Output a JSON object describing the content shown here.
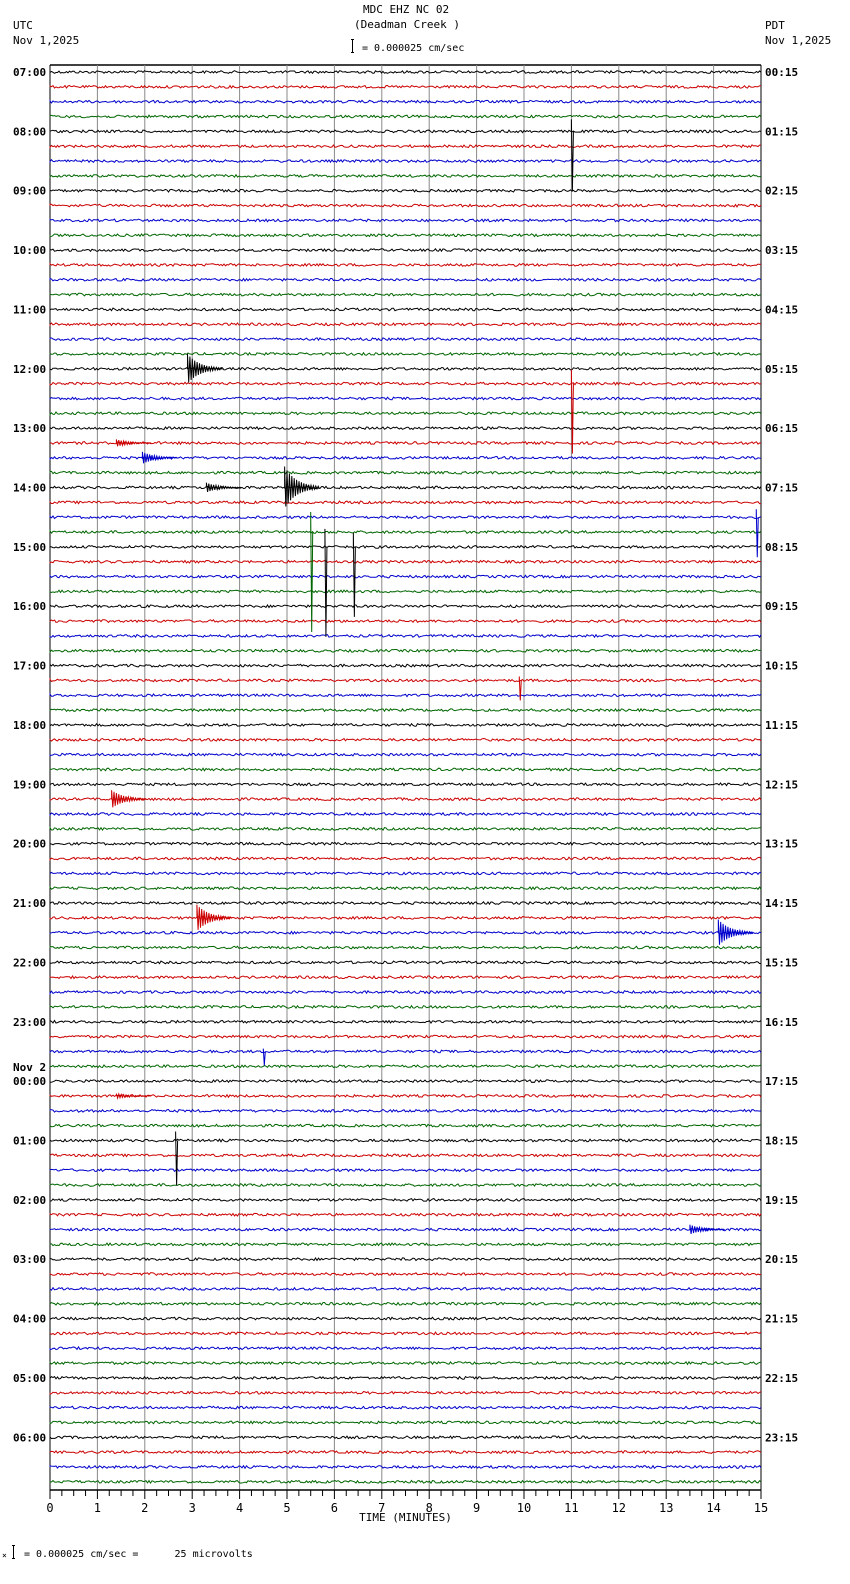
{
  "header": {
    "title": "MDC EHZ NC 02",
    "subtitle": "(Deadman Creek )",
    "scale": "= 0.000025 cm/sec",
    "left_tz": "UTC",
    "left_date": "Nov 1,2025",
    "right_tz": "PDT",
    "right_date": "Nov 1,2025"
  },
  "footer": {
    "scale_note": "= 0.000025 cm/sec =      25 microvolts",
    "prefix": "×"
  },
  "chart_data": {
    "type": "line",
    "title": "MDC EHZ NC 02 (Deadman Creek ) helicorder",
    "xlabel": "TIME (MINUTES)",
    "ylabel": "",
    "xlim": [
      0,
      15
    ],
    "x_ticks": [
      0,
      1,
      2,
      3,
      4,
      5,
      6,
      7,
      8,
      9,
      10,
      11,
      12,
      13,
      14,
      15
    ],
    "traces_per_hour": 4,
    "trace_colors": [
      "#000000",
      "#cc0000",
      "#0000cc",
      "#006600"
    ],
    "left_labels": [
      "07:00",
      "08:00",
      "09:00",
      "10:00",
      "11:00",
      "12:00",
      "13:00",
      "14:00",
      "15:00",
      "16:00",
      "17:00",
      "18:00",
      "19:00",
      "20:00",
      "21:00",
      "22:00",
      "23:00",
      "00:00",
      "01:00",
      "02:00",
      "03:00",
      "04:00",
      "05:00",
      "06:00"
    ],
    "left_date_change": {
      "index": 17,
      "label": "Nov 2"
    },
    "right_labels": [
      "00:15",
      "01:15",
      "02:15",
      "03:15",
      "04:15",
      "05:15",
      "06:15",
      "07:15",
      "08:15",
      "09:15",
      "10:15",
      "11:15",
      "12:15",
      "13:15",
      "14:15",
      "15:15",
      "16:15",
      "17:15",
      "18:15",
      "19:15",
      "20:15",
      "21:15",
      "22:15",
      "23:15"
    ],
    "events": [
      {
        "trace": 4,
        "minute": 11.0,
        "amp": 60,
        "type": "spike"
      },
      {
        "trace": 20,
        "minute": 2.9,
        "amp": 25,
        "type": "burst"
      },
      {
        "trace": 21,
        "minute": 11.0,
        "amp": 70,
        "type": "spike"
      },
      {
        "trace": 25,
        "minute": 1.4,
        "amp": 6,
        "type": "small"
      },
      {
        "trace": 26,
        "minute": 1.95,
        "amp": 10,
        "type": "small"
      },
      {
        "trace": 28,
        "minute": 3.3,
        "amp": 8,
        "type": "small"
      },
      {
        "trace": 28,
        "minute": 4.95,
        "amp": 35,
        "type": "burst"
      },
      {
        "trace": 30,
        "minute": 14.9,
        "amp": 40,
        "type": "spike"
      },
      {
        "trace": 31,
        "minute": 5.5,
        "amp": 100,
        "type": "spike"
      },
      {
        "trace": 32,
        "minute": 5.8,
        "amp": 90,
        "type": "spike"
      },
      {
        "trace": 32,
        "minute": 6.4,
        "amp": 70,
        "type": "spike"
      },
      {
        "trace": 41,
        "minute": 9.9,
        "amp": 20,
        "type": "spike"
      },
      {
        "trace": 49,
        "minute": 1.3,
        "amp": 15,
        "type": "burst"
      },
      {
        "trace": 57,
        "minute": 3.1,
        "amp": 22,
        "type": "burst"
      },
      {
        "trace": 58,
        "minute": 14.1,
        "amp": 22,
        "type": "burst"
      },
      {
        "trace": 66,
        "minute": 4.5,
        "amp": 14,
        "type": "spike"
      },
      {
        "trace": 69,
        "minute": 1.4,
        "amp": 4,
        "type": "burst"
      },
      {
        "trace": 72,
        "minute": 2.65,
        "amp": 45,
        "type": "spike"
      },
      {
        "trace": 78,
        "minute": 13.5,
        "amp": 8,
        "type": "small"
      }
    ]
  }
}
